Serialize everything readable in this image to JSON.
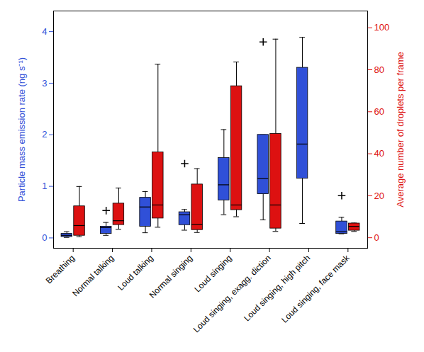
{
  "chart_data": {
    "type": "box",
    "categories": [
      "Breathing",
      "Normal talking",
      "Loud talking",
      "Normal singing",
      "Loud singing",
      "Loud singing, exagg. diction",
      "Loud singing, high pitch",
      "Loud singing, face mask"
    ],
    "y_label": "Particle mass emission rate (ng s⁻¹)",
    "y2_label": "Average number of droplets per frame",
    "ylim": [
      -0.2,
      4.4
    ],
    "yticks": [
      0,
      1,
      2,
      3,
      4
    ],
    "y2lim": [
      -5,
      108
    ],
    "y2ticks": [
      0,
      20,
      40,
      60,
      80,
      100
    ],
    "series": [
      {
        "color": "#3050d8",
        "axis": "y",
        "values": [
          {
            "min": 0.01,
            "q1": 0.02,
            "median": 0.05,
            "q3": 0.08,
            "max": 0.12,
            "outliers": []
          },
          {
            "min": 0.05,
            "q1": 0.08,
            "median": 0.2,
            "q3": 0.22,
            "max": 0.3,
            "outliers": [
              0.53
            ]
          },
          {
            "min": 0.1,
            "q1": 0.22,
            "median": 0.6,
            "q3": 0.78,
            "max": 0.9,
            "outliers": []
          },
          {
            "min": 0.15,
            "q1": 0.25,
            "median": 0.45,
            "q3": 0.5,
            "max": 0.55,
            "outliers": [
              1.44
            ]
          },
          {
            "min": 0.45,
            "q1": 0.73,
            "median": 1.03,
            "q3": 1.55,
            "max": 2.1,
            "outliers": []
          },
          {
            "min": 0.35,
            "q1": 0.85,
            "median": 1.15,
            "q3": 2.0,
            "max": 2.0,
            "outliers": [
              3.8
            ]
          },
          {
            "min": 0.28,
            "q1": 1.15,
            "median": 1.82,
            "q3": 3.3,
            "max": 3.89,
            "outliers": []
          },
          {
            "min": 0.08,
            "q1": 0.08,
            "median": 0.12,
            "q3": 0.32,
            "max": 0.4,
            "outliers": [
              0.82
            ]
          }
        ]
      },
      {
        "color": "#dd1111",
        "axis": "y2",
        "values": [
          {
            "min": 0.5,
            "q1": 1,
            "median": 5.8,
            "q3": 15,
            "max": 24.4,
            "outliers": []
          },
          {
            "min": 4,
            "q1": 6.1,
            "median": 8.1,
            "q3": 16.3,
            "max": 23.7,
            "outliers": []
          },
          {
            "min": 5,
            "q1": 9.2,
            "median": 15.6,
            "q3": 40.7,
            "max": 82.7,
            "outliers": []
          },
          {
            "min": 2.5,
            "q1": 3.7,
            "median": 6.4,
            "q3": 25.4,
            "max": 32.9,
            "outliers": []
          },
          {
            "min": 10,
            "q1": 13.2,
            "median": 15.6,
            "q3": 72.2,
            "max": 83.7,
            "outliers": []
          },
          {
            "min": 3,
            "q1": 4.4,
            "median": 15.6,
            "q3": 49.5,
            "max": 94.6,
            "outliers": []
          },
          null,
          {
            "min": 3,
            "q1": 3.4,
            "median": 5.4,
            "q3": 6.8,
            "max": 7,
            "outliers": []
          }
        ]
      }
    ]
  }
}
